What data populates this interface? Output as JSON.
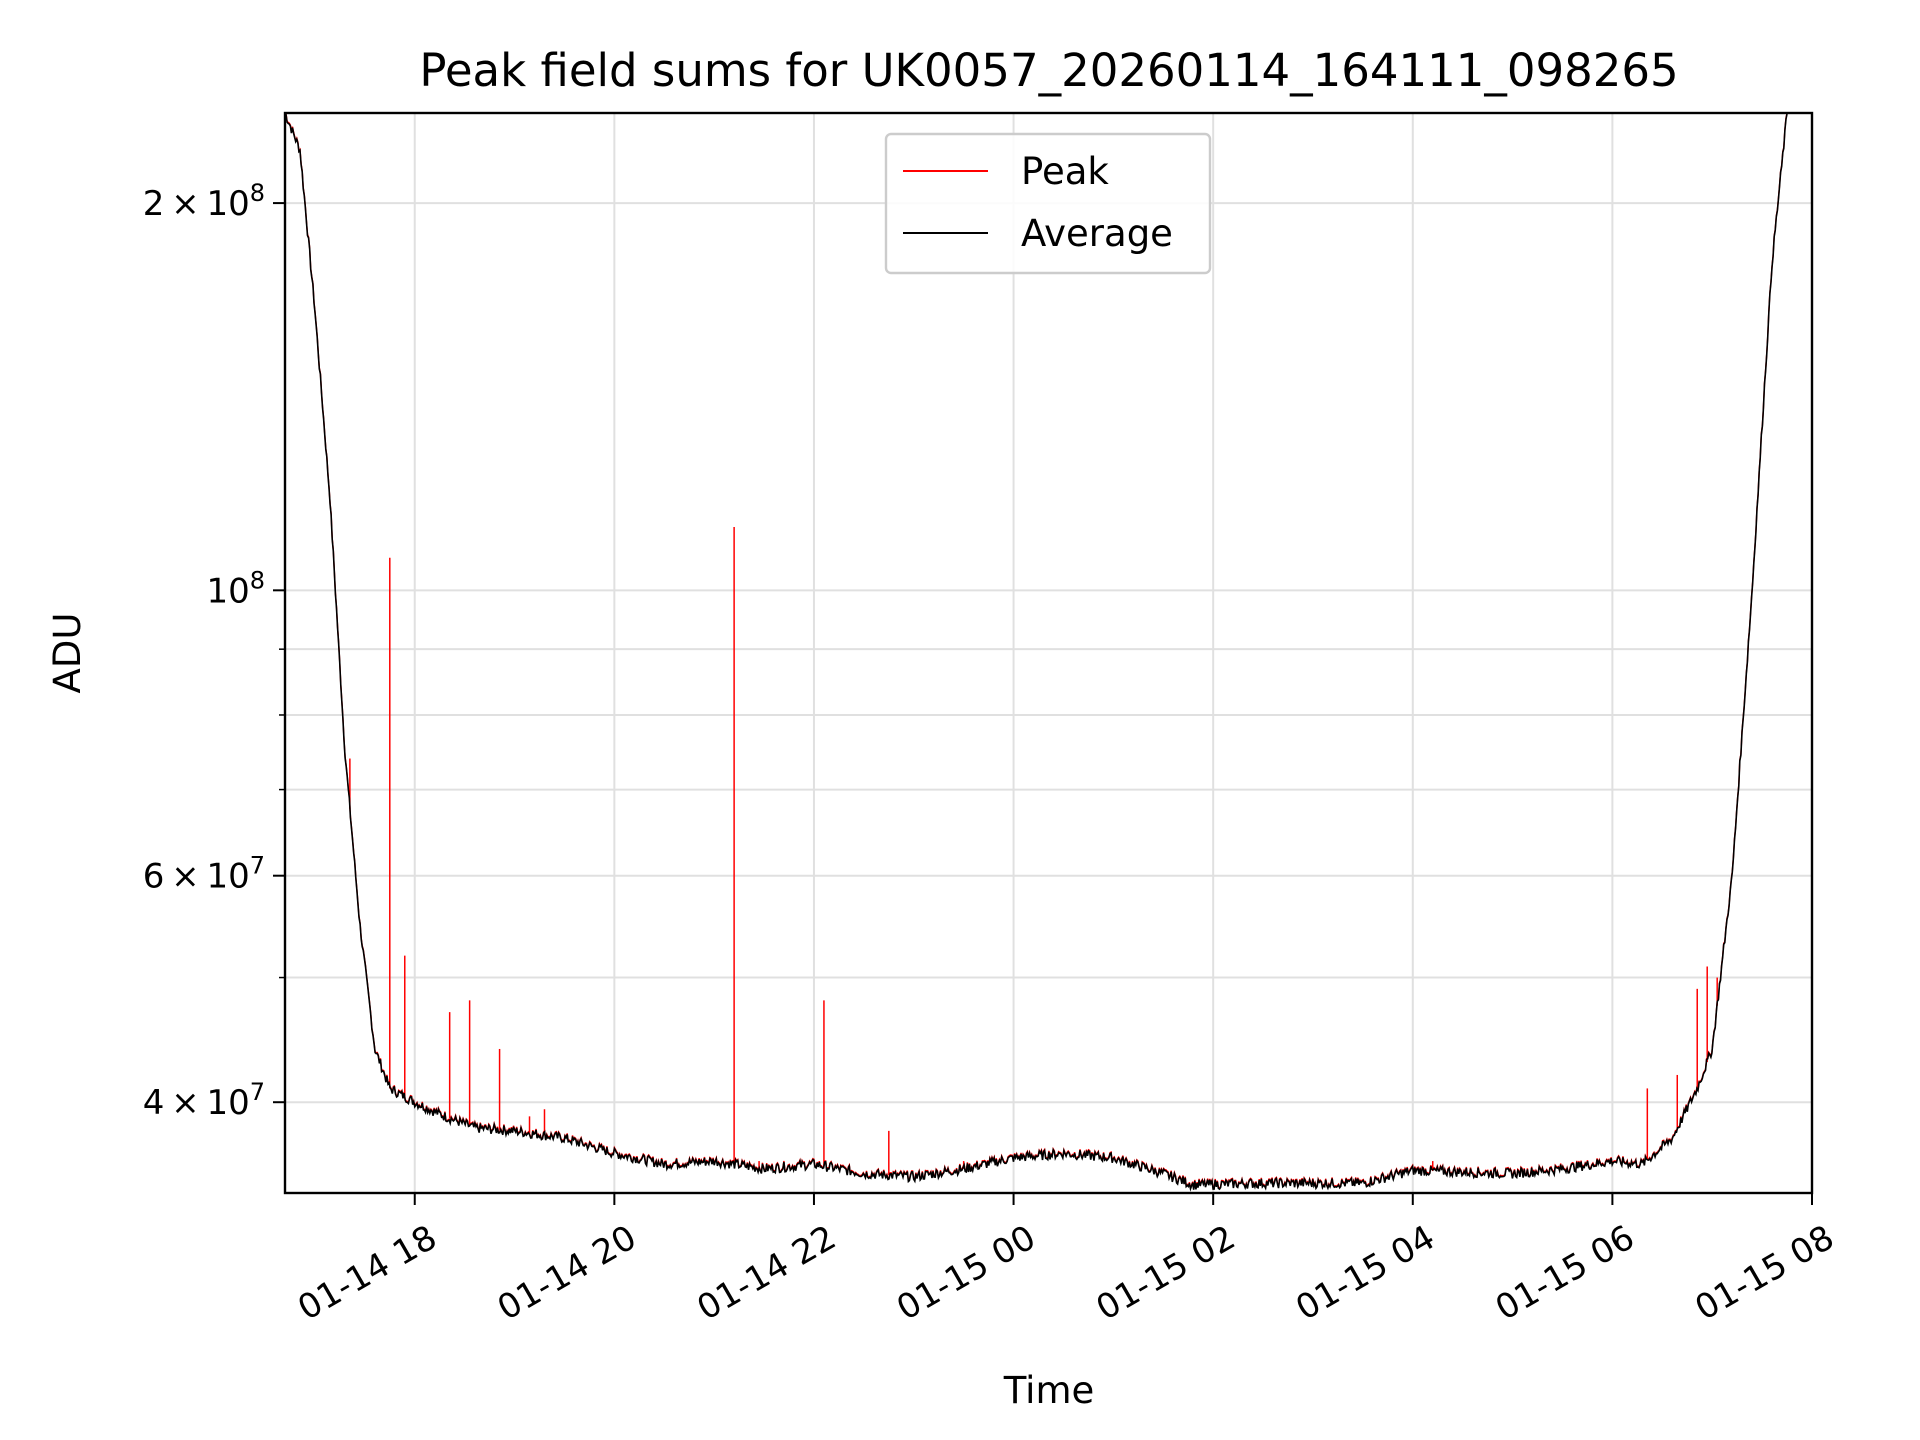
{
  "chart_data": {
    "type": "line",
    "title": "Peak field sums for UK0057_20260114_164111_098265",
    "xlabel": "Time",
    "ylabel": "ADU",
    "yscale": "log",
    "ylim": [
      34000000,
      235000000
    ],
    "xlim_hours": [
      16.7,
      32.0
    ],
    "grid": true,
    "legend_position": "top-center",
    "colors": {
      "peak": "#ff0000",
      "average": "#000000",
      "grid": "#e0e0e0"
    },
    "x_ticks": [
      {
        "hour": 18,
        "label": "01-14 18"
      },
      {
        "hour": 20,
        "label": "01-14 20"
      },
      {
        "hour": 22,
        "label": "01-14 22"
      },
      {
        "hour": 24,
        "label": "01-15 00"
      },
      {
        "hour": 26,
        "label": "01-15 02"
      },
      {
        "hour": 28,
        "label": "01-15 04"
      },
      {
        "hour": 30,
        "label": "01-15 06"
      },
      {
        "hour": 32,
        "label": "01-15 08"
      }
    ],
    "y_major_ticks": [
      {
        "value": 40000000,
        "mantissa": "4",
        "exponent": "7"
      },
      {
        "value": 60000000,
        "mantissa": "6",
        "exponent": "7"
      },
      {
        "value": 100000000,
        "mantissa": "",
        "exponent": "8"
      },
      {
        "value": 200000000,
        "mantissa": "2",
        "exponent": "8"
      }
    ],
    "y_minor_ticks": [
      50000000,
      70000000,
      80000000,
      90000000
    ],
    "series": [
      {
        "name": "Peak",
        "color": "#ff0000",
        "spikes": [
          [
            17.35,
            74000000
          ],
          [
            17.75,
            106000000
          ],
          [
            17.9,
            52000000
          ],
          [
            18.35,
            47000000
          ],
          [
            18.55,
            48000000
          ],
          [
            18.85,
            44000000
          ],
          [
            19.15,
            39000000
          ],
          [
            19.3,
            39500000
          ],
          [
            21.2,
            112000000
          ],
          [
            21.45,
            36000000
          ],
          [
            22.1,
            48000000
          ],
          [
            22.75,
            38000000
          ],
          [
            23.5,
            36000000
          ],
          [
            27.0,
            34800000
          ],
          [
            28.2,
            36000000
          ],
          [
            30.35,
            41000000
          ],
          [
            30.65,
            42000000
          ],
          [
            30.85,
            49000000
          ],
          [
            30.95,
            51000000
          ],
          [
            31.05,
            50000000
          ]
        ]
      },
      {
        "name": "Average",
        "color": "#000000",
        "points": [
          [
            16.7,
            235000000
          ],
          [
            16.85,
            220000000
          ],
          [
            17.0,
            165000000
          ],
          [
            17.15,
            118000000
          ],
          [
            17.3,
            75000000
          ],
          [
            17.45,
            55000000
          ],
          [
            17.6,
            44000000
          ],
          [
            17.75,
            41000000
          ],
          [
            18.0,
            40000000
          ],
          [
            18.3,
            39000000
          ],
          [
            18.6,
            38200000
          ],
          [
            19.0,
            38000000
          ],
          [
            19.5,
            37500000
          ],
          [
            20.0,
            36500000
          ],
          [
            20.5,
            35800000
          ],
          [
            21.0,
            36000000
          ],
          [
            21.5,
            35500000
          ],
          [
            22.0,
            35800000
          ],
          [
            22.5,
            35200000
          ],
          [
            23.0,
            35000000
          ],
          [
            23.5,
            35500000
          ],
          [
            24.0,
            36200000
          ],
          [
            24.5,
            36500000
          ],
          [
            25.0,
            36200000
          ],
          [
            25.5,
            35200000
          ],
          [
            25.8,
            34500000
          ],
          [
            26.5,
            34600000
          ],
          [
            27.5,
            34600000
          ],
          [
            28.0,
            35400000
          ],
          [
            28.5,
            35300000
          ],
          [
            29.0,
            35200000
          ],
          [
            29.5,
            35500000
          ],
          [
            30.0,
            36000000
          ],
          [
            30.3,
            35800000
          ],
          [
            30.6,
            37500000
          ],
          [
            30.85,
            41000000
          ],
          [
            31.0,
            44000000
          ],
          [
            31.2,
            60000000
          ],
          [
            31.4,
            100000000
          ],
          [
            31.6,
            180000000
          ],
          [
            31.75,
            235000000
          ]
        ]
      }
    ]
  }
}
